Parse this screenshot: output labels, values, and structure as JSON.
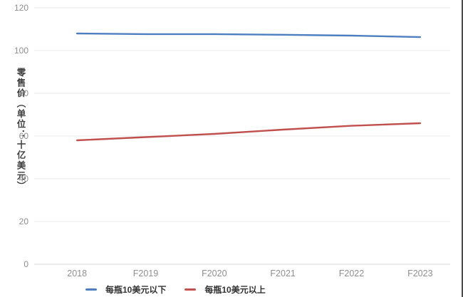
{
  "chart": {
    "background": "#ffffff",
    "grid_color": "#ededed",
    "zero_line_color": "#e0e0e0",
    "tick_text_color": "#8f8f8f",
    "ylabel_color": "#3d3d3d",
    "frame_border_color": "#4b4b4b"
  },
  "chart_data": {
    "type": "line",
    "title": "",
    "xlabel": "",
    "ylabel": "零售价（单位：十亿美元）",
    "categories": [
      "2018",
      "F2019",
      "F2020",
      "F2021",
      "F2022",
      "F2023"
    ],
    "series": [
      {
        "name": "每瓶10美元以下",
        "color": "#4d7ebf",
        "values": [
          108,
          107.7,
          107.7,
          107.4,
          107,
          106.3
        ]
      },
      {
        "name": "每瓶10美元以上",
        "color": "#c0504d",
        "values": [
          58,
          59.5,
          61,
          63,
          64.8,
          66
        ]
      }
    ],
    "yticks": [
      0,
      20,
      40,
      60,
      80,
      100,
      120
    ],
    "ylim": [
      0,
      120
    ],
    "grid": "horizontal",
    "legend_position": "bottom"
  }
}
